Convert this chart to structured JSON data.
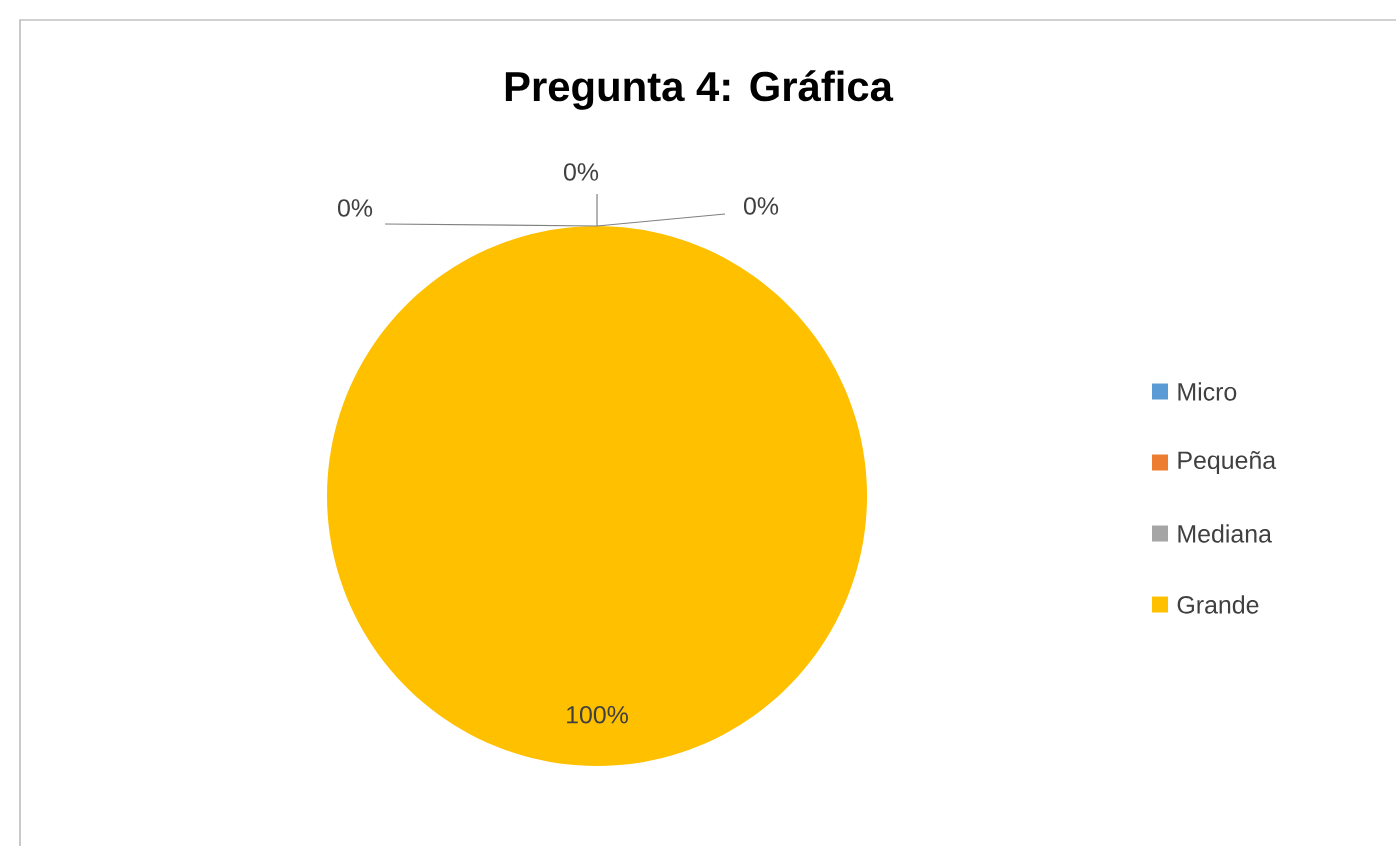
{
  "chart_data": {
    "type": "pie",
    "title": "Pregunta 4: Gráfica",
    "categories": [
      "Micro",
      "Pequeña",
      "Mediana",
      "Grande"
    ],
    "values": [
      0,
      0,
      0,
      100
    ],
    "colors": [
      "#5b9bd5",
      "#ed7d31",
      "#a5a5a5",
      "#ffc000"
    ],
    "value_labels": [
      "0%",
      "0%",
      "0%",
      "100%"
    ],
    "legend": "right"
  }
}
